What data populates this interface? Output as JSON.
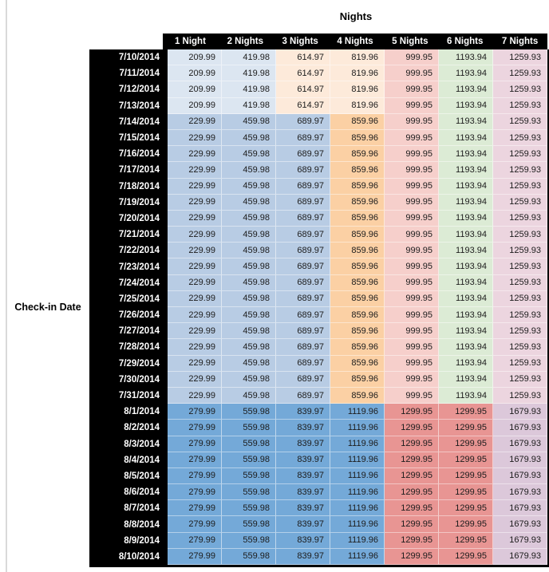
{
  "table": {
    "title": "Nights",
    "row_axis_label": "Check-in Date",
    "columns": [
      "1 Night",
      "2 Nights",
      "3 Nights",
      "4 Nights",
      "5 Nights",
      "6 Nights",
      "7 Nights"
    ],
    "palette": {
      "light_blue": "#dce6f1",
      "med_blue": "#b8cce4",
      "dark_blue": "#74a9d8",
      "light_orange": "#fdeada",
      "med_orange": "#fbd0a4",
      "light_red": "#f6cfcb",
      "light_green": "#dcebd5",
      "light_purple": "#ecd5df",
      "salmon": "#e89593",
      "med_purple": "#dcc8da",
      "header_bg": "#000000",
      "header_text": "#ffffff",
      "gutter_line": "#d9d9d9"
    },
    "groups": [
      {
        "dates": [
          "7/10/2014",
          "7/11/2014",
          "7/12/2014",
          "7/13/2014"
        ],
        "values": [
          "209.99",
          "419.98",
          "614.97",
          "819.96",
          "999.95",
          "1193.94",
          "1259.93"
        ],
        "cell_colors": [
          "light_blue",
          "light_blue",
          "light_orange",
          "light_orange",
          "light_red",
          "light_green",
          "light_purple"
        ]
      },
      {
        "dates": [
          "7/14/2014",
          "7/15/2014",
          "7/16/2014",
          "7/17/2014",
          "7/18/2014",
          "7/19/2014",
          "7/20/2014",
          "7/21/2014",
          "7/22/2014",
          "7/23/2014",
          "7/24/2014",
          "7/25/2014",
          "7/26/2014",
          "7/27/2014",
          "7/28/2014",
          "7/29/2014",
          "7/30/2014",
          "7/31/2014"
        ],
        "values": [
          "229.99",
          "459.98",
          "689.97",
          "859.96",
          "999.95",
          "1193.94",
          "1259.93"
        ],
        "cell_colors": [
          "med_blue",
          "med_blue",
          "med_blue",
          "med_orange",
          "light_red",
          "light_green",
          "light_purple"
        ]
      },
      {
        "dates": [
          "8/1/2014",
          "8/2/2014",
          "8/3/2014",
          "8/4/2014",
          "8/5/2014",
          "8/6/2014",
          "8/7/2014",
          "8/8/2014",
          "8/9/2014",
          "8/10/2014"
        ],
        "values": [
          "279.99",
          "559.98",
          "839.97",
          "1119.96",
          "1299.95",
          "1299.95",
          "1679.93"
        ],
        "cell_colors": [
          "dark_blue",
          "dark_blue",
          "dark_blue",
          "dark_blue",
          "salmon",
          "salmon",
          "med_purple"
        ]
      }
    ]
  },
  "chart_data": {
    "type": "table",
    "title": "Nights",
    "xlabel": "Nights",
    "ylabel": "Check-in Date",
    "columns": [
      "1 Night",
      "2 Nights",
      "3 Nights",
      "4 Nights",
      "5 Nights",
      "6 Nights",
      "7 Nights"
    ],
    "row_groups": [
      {
        "dates": [
          "7/10/2014",
          "7/11/2014",
          "7/12/2014",
          "7/13/2014"
        ],
        "values_per_date": [
          209.99,
          419.98,
          614.97,
          819.96,
          999.95,
          1193.94,
          1259.93
        ]
      },
      {
        "dates": [
          "7/14/2014",
          "7/15/2014",
          "7/16/2014",
          "7/17/2014",
          "7/18/2014",
          "7/19/2014",
          "7/20/2014",
          "7/21/2014",
          "7/22/2014",
          "7/23/2014",
          "7/24/2014",
          "7/25/2014",
          "7/26/2014",
          "7/27/2014",
          "7/28/2014",
          "7/29/2014",
          "7/30/2014",
          "7/31/2014"
        ],
        "values_per_date": [
          229.99,
          459.98,
          689.97,
          859.96,
          999.95,
          1193.94,
          1259.93
        ]
      },
      {
        "dates": [
          "8/1/2014",
          "8/2/2014",
          "8/3/2014",
          "8/4/2014",
          "8/5/2014",
          "8/6/2014",
          "8/7/2014",
          "8/8/2014",
          "8/9/2014",
          "8/10/2014"
        ],
        "values_per_date": [
          279.99,
          559.98,
          839.97,
          1119.96,
          1299.95,
          1299.95,
          1679.93
        ]
      }
    ]
  }
}
